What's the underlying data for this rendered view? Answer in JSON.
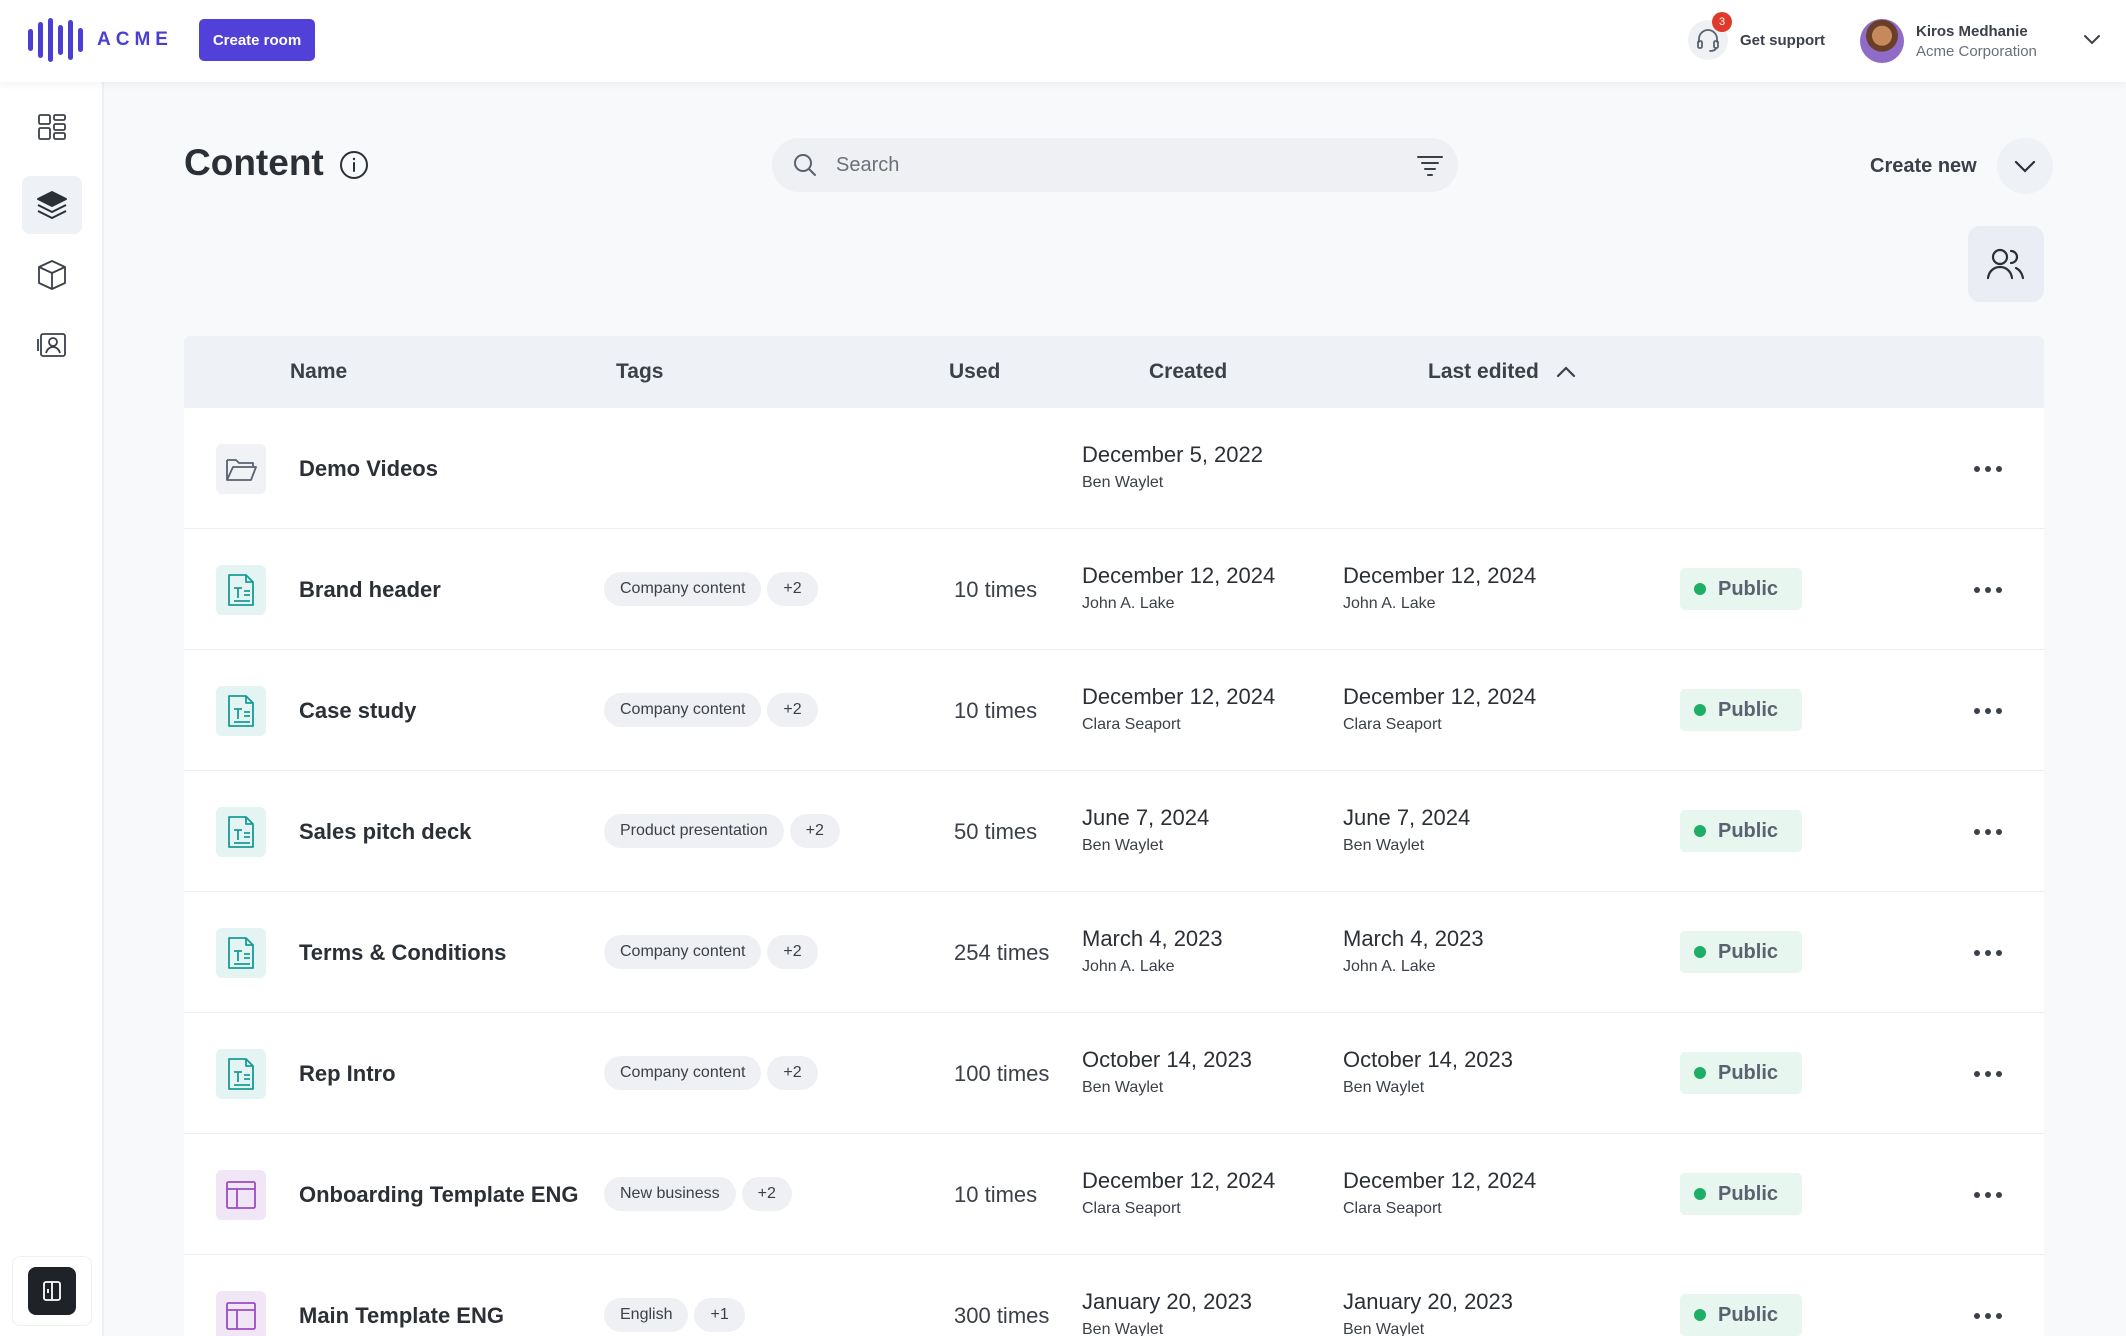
{
  "app": {
    "logo_text": "ACME",
    "create_room_label": "Create room",
    "support_label": "Get support",
    "support_badge": "3",
    "user_name": "Kiros Medhanie",
    "user_org": "Acme Corporation"
  },
  "sidebar": {
    "items": [
      {
        "icon": "dashboard-grid-icon",
        "active": false
      },
      {
        "icon": "layers-icon",
        "active": true
      },
      {
        "icon": "box-icon",
        "active": false
      },
      {
        "icon": "contact-card-icon",
        "active": false
      }
    ],
    "bottom_icon": "panel-toggle-icon"
  },
  "page": {
    "title": "Content",
    "search_placeholder": "Search",
    "create_new_label": "Create new"
  },
  "table": {
    "columns": {
      "name": "Name",
      "tags": "Tags",
      "used": "Used",
      "created": "Created",
      "last_edited": "Last edited"
    },
    "rows": [
      {
        "type": "folder",
        "name": "Demo Videos",
        "tags": [],
        "used": "",
        "created_date": "December 5, 2022",
        "created_by": "Ben Waylet",
        "edited_date": "",
        "edited_by": "",
        "status": ""
      },
      {
        "type": "doc",
        "name": "Brand header",
        "tags": [
          "Company content",
          "+2"
        ],
        "used": "10 times",
        "created_date": "December 12, 2024",
        "created_by": "John A. Lake",
        "edited_date": "December 12, 2024",
        "edited_by": "John A. Lake",
        "status": "Public"
      },
      {
        "type": "doc",
        "name": "Case study",
        "tags": [
          "Company content",
          "+2"
        ],
        "used": "10 times",
        "created_date": "December 12, 2024",
        "created_by": "Clara Seaport",
        "edited_date": "December 12, 2024",
        "edited_by": "Clara Seaport",
        "status": "Public"
      },
      {
        "type": "doc",
        "name": "Sales pitch deck",
        "tags": [
          "Product presentation",
          "+2"
        ],
        "used": "50 times",
        "created_date": "June 7, 2024",
        "created_by": "Ben Waylet",
        "edited_date": "June 7, 2024",
        "edited_by": "Ben Waylet",
        "status": "Public"
      },
      {
        "type": "doc",
        "name": "Terms & Conditions",
        "tags": [
          "Company content",
          "+2"
        ],
        "used": "254 times",
        "created_date": "March 4, 2023",
        "created_by": "John A. Lake",
        "edited_date": "March 4, 2023",
        "edited_by": "John A. Lake",
        "status": "Public"
      },
      {
        "type": "doc",
        "name": "Rep Intro",
        "tags": [
          "Company content",
          "+2"
        ],
        "used": "100 times",
        "created_date": "October 14, 2023",
        "created_by": "Ben Waylet",
        "edited_date": "October 14, 2023",
        "edited_by": "Ben Waylet",
        "status": "Public"
      },
      {
        "type": "template",
        "name": "Onboarding Template ENG",
        "tags": [
          "New business",
          "+2"
        ],
        "used": "10 times",
        "created_date": "December 12, 2024",
        "created_by": "Clara Seaport",
        "edited_date": "December 12, 2024",
        "edited_by": "Clara Seaport",
        "status": "Public"
      },
      {
        "type": "template",
        "name": "Main Template ENG",
        "tags": [
          "English",
          "+1"
        ],
        "used": "300 times",
        "created_date": "January 20, 2023",
        "created_by": "Ben Waylet",
        "edited_date": "January 20, 2023",
        "edited_by": "Ben Waylet",
        "status": "Public"
      }
    ]
  },
  "colors": {
    "brand": "#5141d9",
    "status_public": "#1fae66",
    "doc_icon": "#1a9a94",
    "template_icon": "#9a4cc4"
  }
}
